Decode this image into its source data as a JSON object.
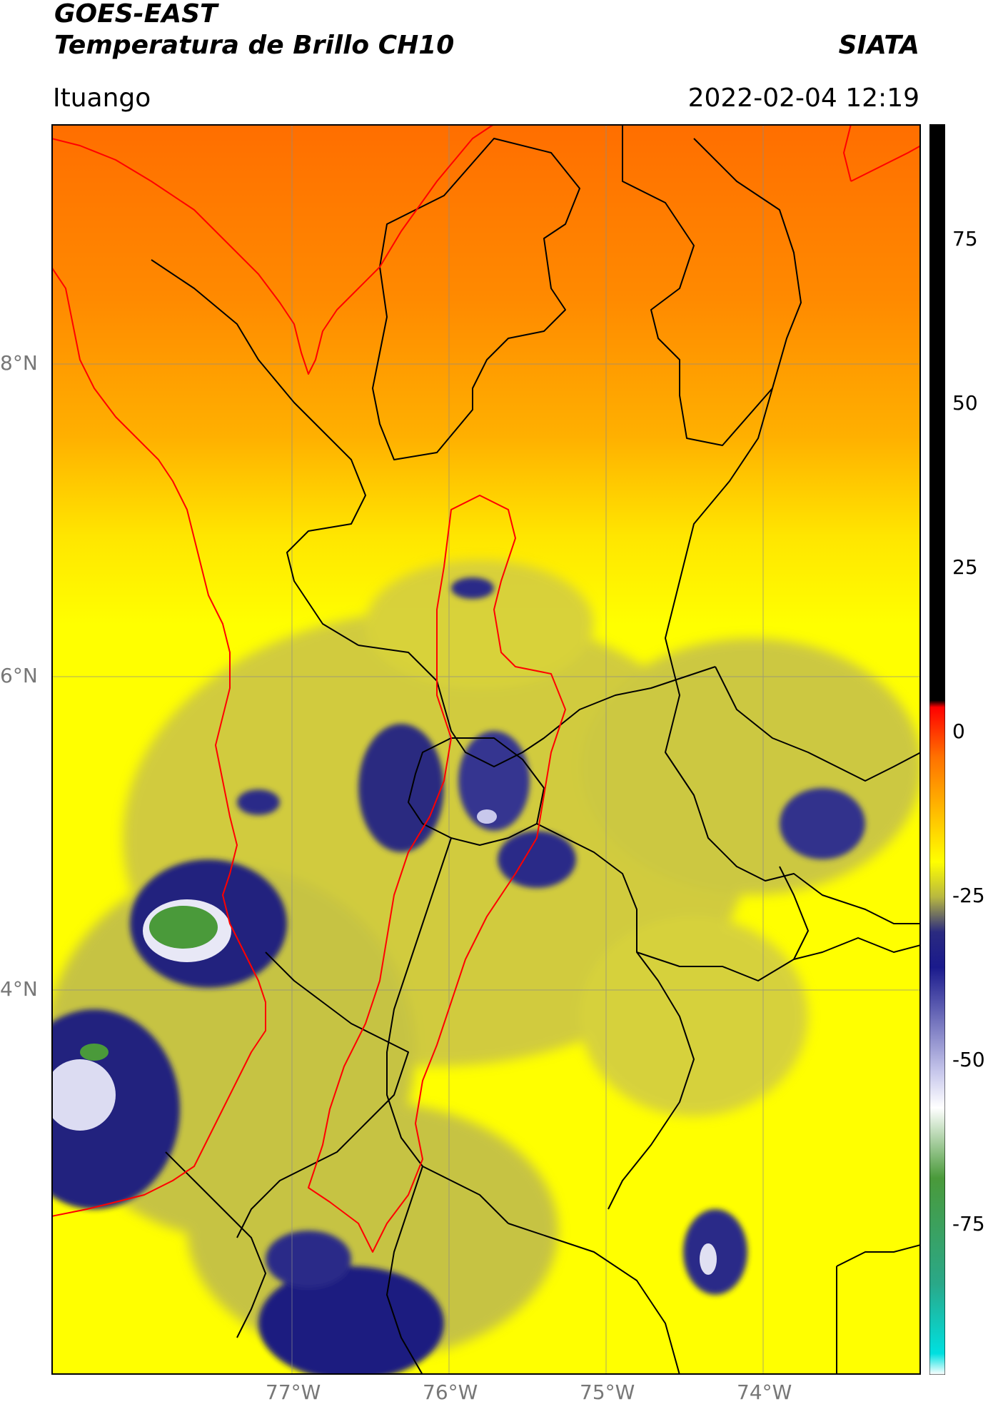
{
  "header": {
    "line1": "GOES-EAST",
    "line2": "Temperatura de Brillo CH10",
    "brand": "SIATA",
    "location": "Ituango",
    "timestamp": "2022-02-04 12:19"
  },
  "map": {
    "lat_labels": [
      "8°N",
      "6°N",
      "4°N"
    ],
    "lon_labels": [
      "77°W",
      "76°W",
      "75°W",
      "74°W"
    ],
    "border_color": "#000000",
    "highlight_color": "#ff0000"
  },
  "colorbar": {
    "tick_labels": [
      "75",
      "50",
      "25",
      "0",
      "-25",
      "-50",
      "-75"
    ],
    "stops": [
      {
        "value": 90,
        "color": "#000000"
      },
      {
        "value": 8,
        "color": "#000000"
      },
      {
        "value": 7,
        "color": "#ff0000"
      },
      {
        "value": 0,
        "color": "#ff7000"
      },
      {
        "value": -10,
        "color": "#ffd000"
      },
      {
        "value": -15,
        "color": "#ffff00"
      },
      {
        "value": -20,
        "color": "#b8b840"
      },
      {
        "value": -25,
        "color": "#2a2a80"
      },
      {
        "value": -30,
        "color": "#1a1a8c"
      },
      {
        "value": -45,
        "color": "#c8c8ec"
      },
      {
        "value": -50,
        "color": "#ffffff"
      },
      {
        "value": -60,
        "color": "#4a9a3a"
      },
      {
        "value": -75,
        "color": "#2aa888"
      },
      {
        "value": -85,
        "color": "#00e0e0"
      },
      {
        "value": -88,
        "color": "#ffffff"
      }
    ]
  }
}
